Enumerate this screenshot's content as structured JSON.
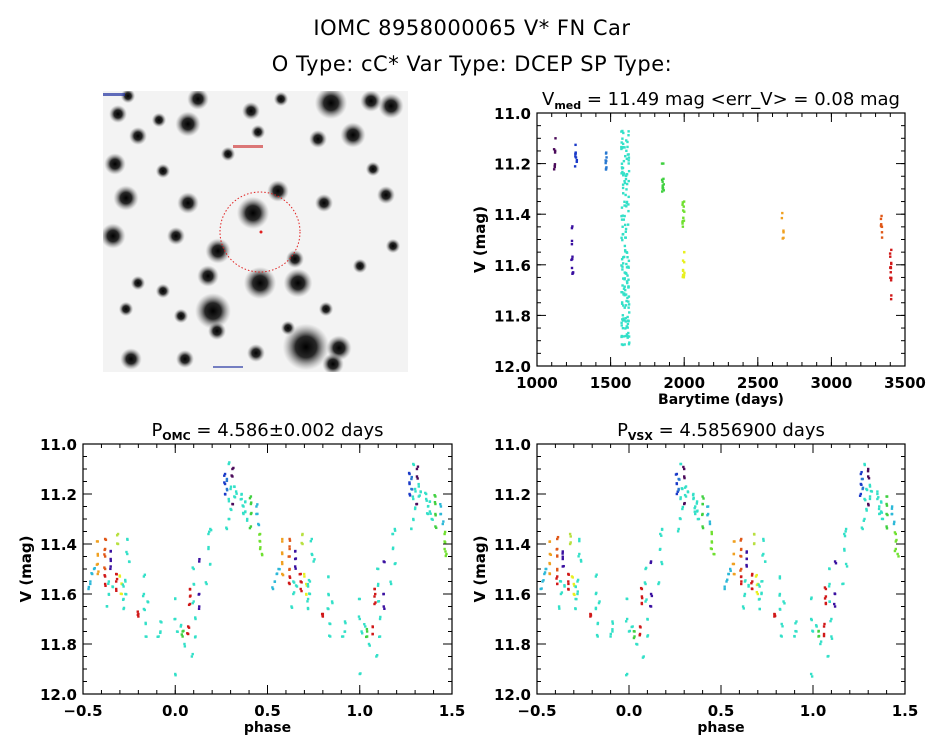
{
  "header": {
    "line1": "IOMC 8958000065    V* FN Car",
    "line2": "O Type: cC*   Var Type: DCEP   SP Type:"
  },
  "sky_image": {
    "label": "OMC finding chart",
    "marker_color": "#e02020"
  },
  "chart_data": [
    {
      "type": "scatter",
      "id": "timeseries",
      "title_main": "V",
      "title_sub": "med",
      "title_rest": " = 11.49 mag <err_V> = 0.08 mag",
      "xlabel": "Barytime (days)",
      "ylabel": "V (mag)",
      "xlim": [
        1000,
        3500
      ],
      "ylim": [
        12.0,
        11.0
      ],
      "y_inverted": true,
      "xticks": [
        1000,
        1500,
        2000,
        2500,
        3000,
        3500
      ],
      "xtick_labels": [
        "1000",
        "1500",
        "2000",
        "2500",
        "3000",
        "3500"
      ],
      "yticks": [
        11.0,
        11.2,
        11.4,
        11.6,
        11.8,
        12.0
      ],
      "ytick_labels": [
        "11.0",
        "11.2",
        "11.4",
        "11.6",
        "11.8",
        "12.0"
      ],
      "grid": false,
      "groups": [
        {
          "x": 1120,
          "color": "#4a0a5a",
          "vmin": 11.1,
          "vmax": 11.25,
          "n": 8
        },
        {
          "x": 1240,
          "color": "#3a10a0",
          "vmin": 11.42,
          "vmax": 11.65,
          "n": 12
        },
        {
          "x": 1265,
          "color": "#1a3ac8",
          "vmin": 11.12,
          "vmax": 11.22,
          "n": 9
        },
        {
          "x": 1470,
          "color": "#2878d0",
          "vmin": 11.12,
          "vmax": 11.23,
          "n": 9
        },
        {
          "x": 1600,
          "color": "#33e0c8",
          "vmin": 11.07,
          "vmax": 11.92,
          "n": 160
        },
        {
          "x": 1855,
          "color": "#40d040",
          "vmin": 11.19,
          "vmax": 11.34,
          "n": 12
        },
        {
          "x": 1995,
          "color": "#70e030",
          "vmin": 11.35,
          "vmax": 11.45,
          "n": 12
        },
        {
          "x": 1995,
          "color": "#e8f020",
          "vmin": 11.51,
          "vmax": 11.67,
          "n": 12
        },
        {
          "x": 2670,
          "color": "#f0a020",
          "vmin": 11.39,
          "vmax": 11.52,
          "n": 6
        },
        {
          "x": 3340,
          "color": "#e05818",
          "vmin": 11.38,
          "vmax": 11.51,
          "n": 8
        },
        {
          "x": 3405,
          "color": "#d01818",
          "vmin": 11.52,
          "vmax": 11.75,
          "n": 14
        }
      ]
    },
    {
      "type": "scatter",
      "id": "phase_omc",
      "title_main": "P",
      "title_sub": "OMC",
      "title_rest": " = 4.586±0.002 days",
      "xlabel": "phase",
      "ylabel": "V (mag)",
      "xlim": [
        -0.5,
        1.5
      ],
      "ylim": [
        12.0,
        11.0
      ],
      "y_inverted": true,
      "xticks": [
        -0.5,
        0.0,
        0.5,
        1.0,
        1.5
      ],
      "xtick_labels": [
        "−0.5",
        "0.0",
        "0.5",
        "1.0",
        "1.5"
      ],
      "yticks": [
        11.0,
        11.2,
        11.4,
        11.6,
        11.8,
        12.0
      ],
      "ytick_labels": [
        "11.0",
        "11.2",
        "11.4",
        "11.6",
        "11.8",
        "12.0"
      ],
      "grid": false,
      "period_days": 4.586,
      "points": [
        [
          0.27,
          11.12,
          "#1a3ac8"
        ],
        [
          0.27,
          11.16,
          "#1a3ac8"
        ],
        [
          0.27,
          11.2,
          "#1a3ac8"
        ],
        [
          0.28,
          11.14,
          "#2878d0"
        ],
        [
          0.28,
          11.18,
          "#2878d0"
        ],
        [
          0.31,
          11.1,
          "#4a0a5a"
        ],
        [
          0.31,
          11.13,
          "#4a0a5a"
        ],
        [
          0.31,
          11.24,
          "#4a0a5a"
        ],
        [
          0.29,
          11.08,
          "#33e0c8"
        ],
        [
          0.29,
          11.22,
          "#33e0c8"
        ],
        [
          0.29,
          11.3,
          "#33e0c8"
        ],
        [
          0.3,
          11.18,
          "#33e0c8"
        ],
        [
          0.3,
          11.26,
          "#33e0c8"
        ],
        [
          0.32,
          11.17,
          "#33e0c8"
        ],
        [
          0.32,
          11.21,
          "#33e0c8"
        ],
        [
          0.33,
          11.19,
          "#33e0c8"
        ],
        [
          0.28,
          11.34,
          "#33e0c8"
        ],
        [
          0.36,
          11.22,
          "#33e0c8"
        ],
        [
          0.37,
          11.25,
          "#33e0c8"
        ],
        [
          0.37,
          11.28,
          "#33e0c8"
        ],
        [
          0.38,
          11.23,
          "#33e0c8"
        ],
        [
          0.38,
          11.27,
          "#33e0c8"
        ],
        [
          0.39,
          11.3,
          "#33e0c8"
        ],
        [
          0.36,
          11.2,
          "#33e0c8"
        ],
        [
          0.41,
          11.21,
          "#40d040"
        ],
        [
          0.41,
          11.24,
          "#40d040"
        ],
        [
          0.41,
          11.28,
          "#40d040"
        ],
        [
          0.41,
          11.33,
          "#40d040"
        ],
        [
          0.44,
          11.25,
          "#2cb8d8"
        ],
        [
          0.44,
          11.28,
          "#2cb8d8"
        ],
        [
          0.45,
          11.32,
          "#2cb8d8"
        ],
        [
          0.46,
          11.36,
          "#70e030"
        ],
        [
          0.46,
          11.39,
          "#70e030"
        ],
        [
          0.46,
          11.42,
          "#70e030"
        ],
        [
          0.47,
          11.44,
          "#70e030"
        ],
        [
          -0.45,
          11.52,
          "#2cb8d8"
        ],
        [
          -0.46,
          11.55,
          "#2cb8d8"
        ],
        [
          -0.47,
          11.58,
          "#2cb8d8"
        ],
        [
          -0.44,
          11.5,
          "#2cb8d8"
        ],
        [
          -0.42,
          11.39,
          "#f0a020"
        ],
        [
          -0.42,
          11.44,
          "#f0a020"
        ],
        [
          -0.42,
          11.48,
          "#f0a020"
        ],
        [
          -0.42,
          11.52,
          "#f0a020"
        ],
        [
          -0.38,
          11.38,
          "#e05818"
        ],
        [
          -0.38,
          11.42,
          "#e05818"
        ],
        [
          -0.38,
          11.45,
          "#e05818"
        ],
        [
          -0.38,
          11.5,
          "#e05818"
        ],
        [
          -0.38,
          11.53,
          "#d01818"
        ],
        [
          -0.38,
          11.56,
          "#d01818"
        ],
        [
          -0.35,
          11.43,
          "#3a10a0"
        ],
        [
          -0.35,
          11.46,
          "#3a10a0"
        ],
        [
          -0.35,
          11.49,
          "#3a10a0"
        ],
        [
          -0.36,
          11.55,
          "#33e0c8"
        ],
        [
          -0.36,
          11.6,
          "#33e0c8"
        ],
        [
          -0.37,
          11.65,
          "#33e0c8"
        ],
        [
          -0.34,
          11.57,
          "#33e0c8"
        ],
        [
          -0.32,
          11.52,
          "#d01818"
        ],
        [
          -0.32,
          11.55,
          "#d01818"
        ],
        [
          -0.32,
          11.58,
          "#d01818"
        ],
        [
          -0.31,
          11.36,
          "#b8e040"
        ],
        [
          -0.31,
          11.4,
          "#b8e040"
        ],
        [
          -0.3,
          11.53,
          "#e8f020"
        ],
        [
          -0.29,
          11.56,
          "#e8f020"
        ],
        [
          -0.29,
          11.6,
          "#e8f020"
        ],
        [
          -0.28,
          11.57,
          "#33e0c8"
        ],
        [
          -0.28,
          11.62,
          "#33e0c8"
        ],
        [
          -0.27,
          11.6,
          "#33e0c8"
        ],
        [
          -0.28,
          11.66,
          "#33e0c8"
        ],
        [
          -0.27,
          11.55,
          "#33e0c8"
        ],
        [
          -0.26,
          11.38,
          "#33e0c8"
        ],
        [
          -0.26,
          11.44,
          "#33e0c8"
        ],
        [
          -0.25,
          11.47,
          "#33e0c8"
        ],
        [
          -0.2,
          11.69,
          "#d01818"
        ],
        [
          -0.2,
          11.68,
          "#d01818"
        ],
        [
          -0.17,
          11.53,
          "#33e0c8"
        ],
        [
          -0.17,
          11.6,
          "#33e0c8"
        ],
        [
          -0.17,
          11.66,
          "#33e0c8"
        ],
        [
          -0.16,
          11.72,
          "#33e0c8"
        ],
        [
          -0.15,
          11.63,
          "#33e0c8"
        ],
        [
          -0.16,
          11.77,
          "#33e0c8"
        ],
        [
          -0.08,
          11.71,
          "#33e0c8"
        ],
        [
          -0.08,
          11.75,
          "#33e0c8"
        ],
        [
          -0.09,
          11.77,
          "#33e0c8"
        ],
        [
          0.0,
          11.62,
          "#33e0c8"
        ],
        [
          0.0,
          11.7,
          "#33e0c8"
        ],
        [
          0.01,
          11.75,
          "#33e0c8"
        ],
        [
          0.0,
          11.92,
          "#33e0c8"
        ],
        [
          0.04,
          11.75,
          "#40d040"
        ],
        [
          0.04,
          11.77,
          "#40d040"
        ],
        [
          0.03,
          11.73,
          "#33e0c8"
        ],
        [
          0.05,
          11.8,
          "#33e0c8"
        ],
        [
          0.07,
          11.73,
          "#d01818"
        ],
        [
          0.07,
          11.76,
          "#d01818"
        ],
        [
          0.08,
          11.58,
          "#d01818"
        ],
        [
          0.08,
          11.61,
          "#d01818"
        ],
        [
          0.08,
          11.64,
          "#d01818"
        ],
        [
          0.1,
          11.5,
          "#33e0c8"
        ],
        [
          0.1,
          11.56,
          "#33e0c8"
        ],
        [
          0.1,
          11.63,
          "#33e0c8"
        ],
        [
          0.11,
          11.7,
          "#33e0c8"
        ],
        [
          0.11,
          11.77,
          "#33e0c8"
        ],
        [
          0.09,
          11.85,
          "#33e0c8"
        ],
        [
          0.13,
          11.47,
          "#3a10a0"
        ],
        [
          0.13,
          11.6,
          "#3a10a0"
        ],
        [
          0.13,
          11.65,
          "#3a10a0"
        ],
        [
          0.18,
          11.36,
          "#33e0c8"
        ],
        [
          0.18,
          11.42,
          "#33e0c8"
        ],
        [
          0.19,
          11.48,
          "#33e0c8"
        ],
        [
          0.17,
          11.56,
          "#33e0c8"
        ],
        [
          0.19,
          11.34,
          "#33e0c8"
        ]
      ]
    },
    {
      "type": "scatter",
      "id": "phase_vsx",
      "title_main": "P",
      "title_sub": "VSX",
      "title_rest": " = 4.5856900 days",
      "xlabel": "phase",
      "ylabel": "V (mag)",
      "xlim": [
        -0.5,
        1.5
      ],
      "ylim": [
        12.0,
        11.0
      ],
      "y_inverted": true,
      "xticks": [
        -0.5,
        0.0,
        0.5,
        1.0,
        1.5
      ],
      "xtick_labels": [
        "−0.5",
        "0.0",
        "0.5",
        "1.0",
        "1.5"
      ],
      "yticks": [
        11.0,
        11.2,
        11.4,
        11.6,
        11.8,
        12.0
      ],
      "ytick_labels": [
        "11.0",
        "11.2",
        "11.4",
        "11.6",
        "11.8",
        "12.0"
      ],
      "grid": false,
      "period_days": 4.58569,
      "points_same_as": "phase_omc"
    }
  ]
}
